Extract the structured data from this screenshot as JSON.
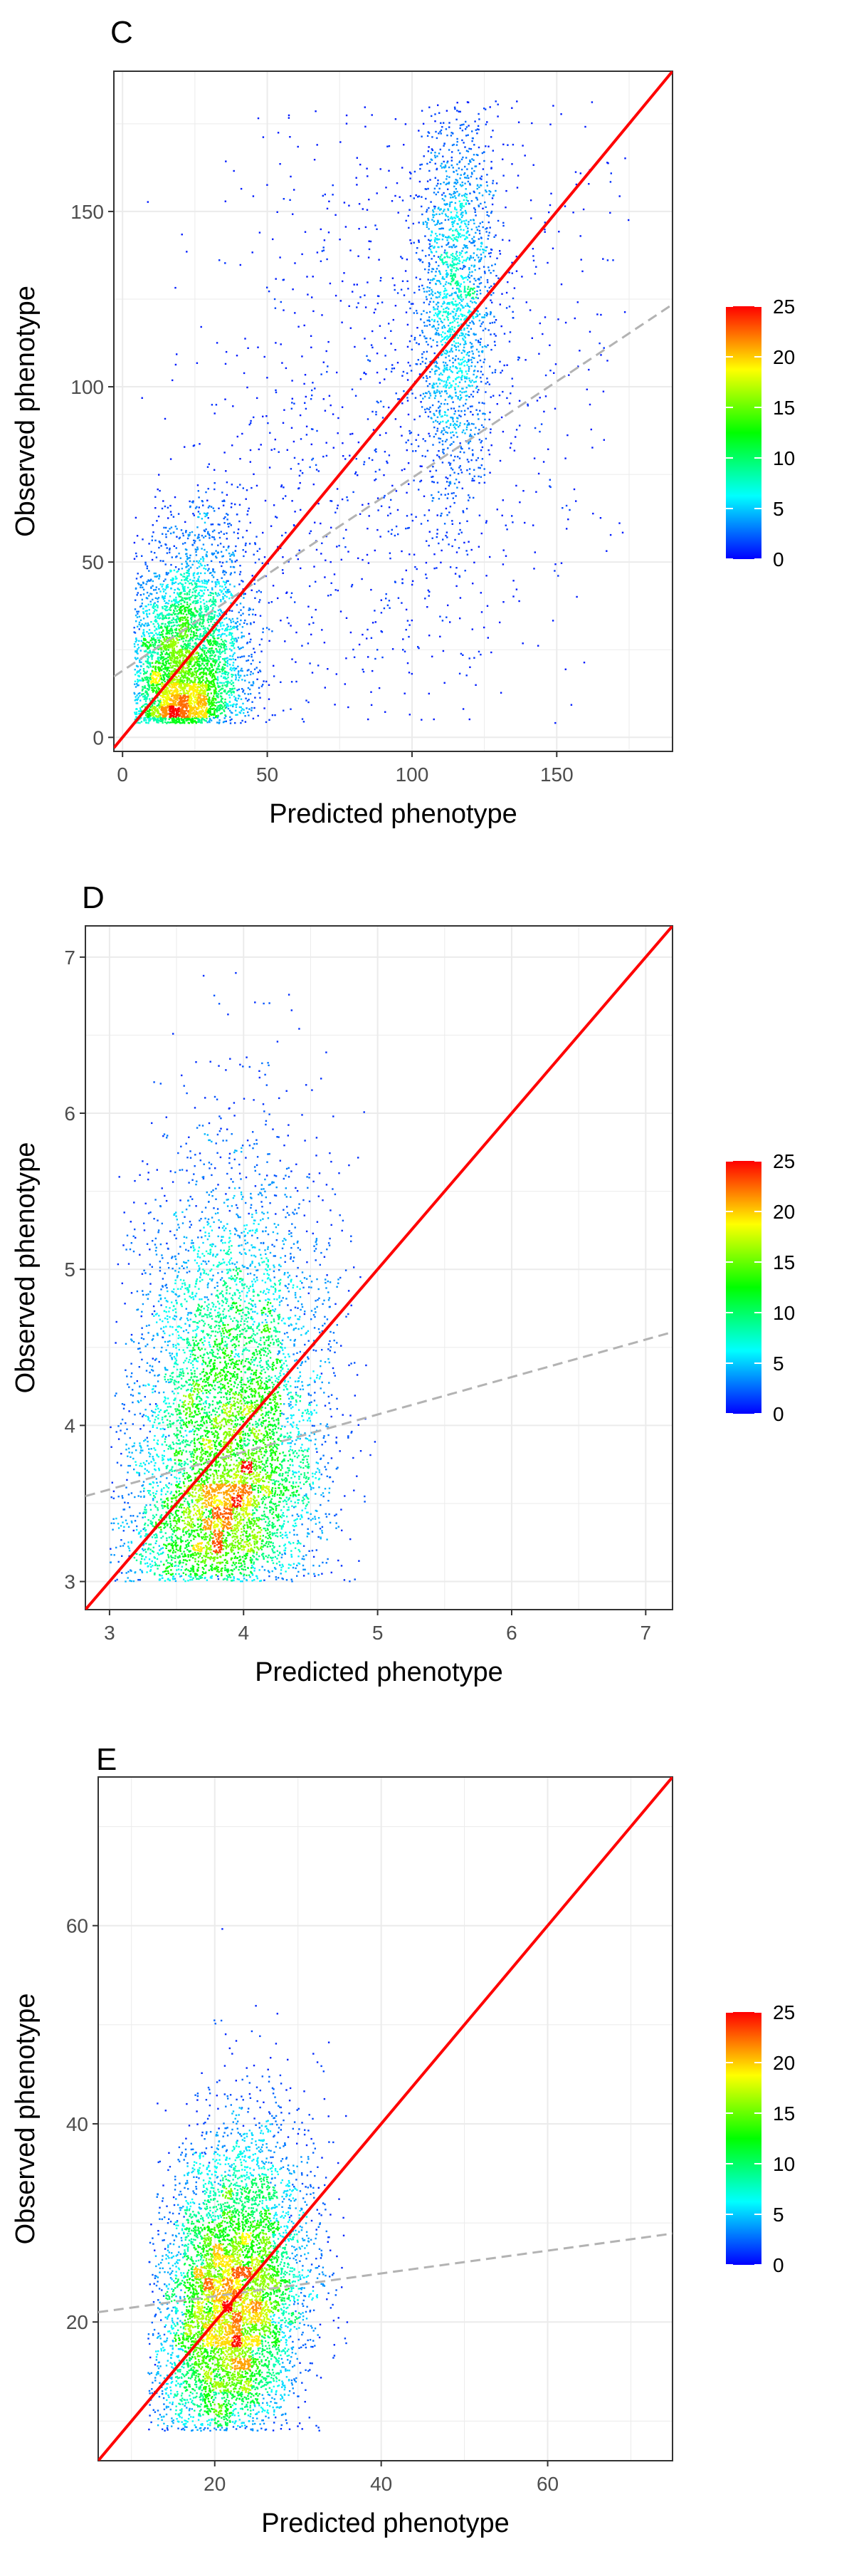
{
  "panels": [
    {
      "letter": "C",
      "chart_data": {
        "type": "scatter",
        "subtype": "density-colored scatter",
        "xlabel": "Predicted phenotype",
        "ylabel": "Observed phenotype",
        "xlim": [
          -3,
          190
        ],
        "ylim": [
          -4,
          190
        ],
        "xticks": [
          0,
          50,
          100,
          150
        ],
        "yticks": [
          0,
          50,
          100,
          150
        ],
        "grid": true,
        "clusters": [
          {
            "cx": 20,
            "cy": 12,
            "sx": 11,
            "sy": 15,
            "n": 6500,
            "xmin": 4,
            "xmax": 175,
            "ymin": 4,
            "ymax": 182,
            "skew": 10
          },
          {
            "cx": 115,
            "cy": 125,
            "sx": 7,
            "sy": 30,
            "n": 1800,
            "xmin": 4,
            "xmax": 175,
            "ymin": 4,
            "ymax": 182,
            "skew": 0
          },
          {
            "cx": 95,
            "cy": 90,
            "sx": 38,
            "sy": 55,
            "n": 1300,
            "xmin": 4,
            "xmax": 175,
            "ymin": 4,
            "ymax": 182,
            "skew": 0
          }
        ],
        "identity_line": {
          "color": "#ff0000",
          "slope": 1,
          "intercept": 0
        },
        "fit_line": {
          "color": "#b3b3b3",
          "dashed": true,
          "slope": 0.55,
          "intercept": 19
        },
        "colorbar": {
          "min": 0,
          "max": 25,
          "ticks": [
            0,
            5,
            10,
            15,
            20,
            25
          ],
          "colors": [
            "#0000ff",
            "#00ffff",
            "#00ff00",
            "#ffff00",
            "#ff0000"
          ],
          "position": "right"
        }
      }
    },
    {
      "letter": "D",
      "chart_data": {
        "type": "scatter",
        "subtype": "density-colored scatter",
        "xlabel": "Predicted phenotype",
        "ylabel": "Observed phenotype",
        "xlim": [
          2.82,
          7.2
        ],
        "ylim": [
          2.82,
          7.2
        ],
        "xticks": [
          3,
          4,
          5,
          6,
          7
        ],
        "yticks": [
          3,
          4,
          5,
          6,
          7
        ],
        "grid": true,
        "clusters": [
          {
            "cx": 3.85,
            "cy": 3.7,
            "sx": 0.36,
            "sy": 0.6,
            "n": 8000,
            "xmin": 3.0,
            "xmax": 5.0,
            "ymin": 3.0,
            "ymax": 7.0,
            "skew": 0.55
          }
        ],
        "identity_line": {
          "color": "#ff0000",
          "slope": 1,
          "intercept": 0
        },
        "fit_line": {
          "color": "#b3b3b3",
          "dashed": true,
          "slope": 0.24,
          "intercept": 2.87
        },
        "colorbar": {
          "min": 0,
          "max": 25,
          "ticks": [
            0,
            5,
            10,
            15,
            20,
            25
          ],
          "colors": [
            "#0000ff",
            "#00ffff",
            "#00ff00",
            "#ffff00",
            "#ff0000"
          ],
          "position": "right"
        }
      }
    },
    {
      "letter": "E",
      "chart_data": {
        "type": "scatter",
        "subtype": "density-colored scatter",
        "xlabel": "Predicted phenotype",
        "ylabel": "Observed phenotype",
        "xlim": [
          6,
          75
        ],
        "ylim": [
          6,
          75
        ],
        "xticks": [
          20,
          40,
          60
        ],
        "yticks": [
          20,
          40,
          60
        ],
        "grid": true,
        "clusters": [
          {
            "cx": 22,
            "cy": 22,
            "sx": 4.5,
            "sy": 8,
            "n": 7000,
            "xmin": 12,
            "xmax": 37,
            "ymin": 9,
            "ymax": 72,
            "skew": 1.0
          }
        ],
        "identity_line": {
          "color": "#ff0000",
          "slope": 1,
          "intercept": 0
        },
        "fit_line": {
          "color": "#b3b3b3",
          "dashed": true,
          "slope": 0.115,
          "intercept": 20.3
        },
        "colorbar": {
          "min": 0,
          "max": 25,
          "ticks": [
            0,
            5,
            10,
            15,
            20,
            25
          ],
          "colors": [
            "#0000ff",
            "#00ffff",
            "#00ff00",
            "#ffff00",
            "#ff0000"
          ],
          "position": "right"
        }
      }
    }
  ]
}
